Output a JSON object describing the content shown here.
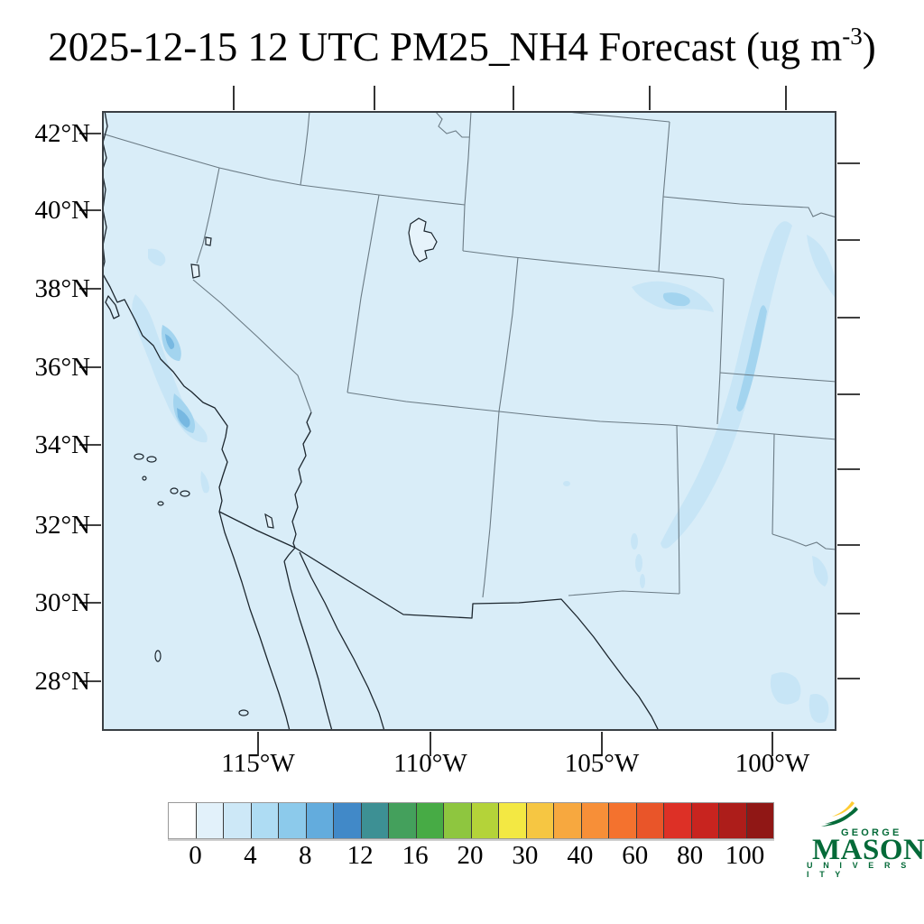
{
  "title": {
    "main": "2025-12-15 12 UTC PM25_NH4 Forecast (ug m",
    "superscript": "-3",
    "close": ")"
  },
  "map": {
    "lat_labels": [
      "42°N",
      "40°N",
      "38°N",
      "36°N",
      "34°N",
      "32°N",
      "30°N",
      "28°N"
    ],
    "lon_labels": [
      "115°W",
      "110°W",
      "105°W",
      "100°W"
    ],
    "fill_color": "#d9edf8",
    "concentration_patch_colors": [
      "#c7e5f6",
      "#a3d4ef",
      "#77b8e1"
    ]
  },
  "colorbar": {
    "tick_labels": [
      "0",
      "4",
      "8",
      "12",
      "16",
      "20",
      "30",
      "40",
      "60",
      "80",
      "100"
    ],
    "units": "ug m-3",
    "colors": [
      "#ffffff",
      "#e2f1fa",
      "#cde8f7",
      "#aedcf3",
      "#8ccaeb",
      "#63acdd",
      "#4189c8",
      "#3d9094",
      "#44a05c",
      "#47ab45",
      "#8ec63f",
      "#b4d339",
      "#f3e843",
      "#f6c642",
      "#f7a83f",
      "#f78f38",
      "#f4722e",
      "#e95529",
      "#dd3026",
      "#c8241f",
      "#ad1d1a",
      "#901715"
    ]
  },
  "logo": {
    "line1": "GEORGE",
    "line2": "MASON",
    "line3": "U N I V E R S I T Y",
    "green": "#046A38",
    "gold": "#FFCC33"
  }
}
